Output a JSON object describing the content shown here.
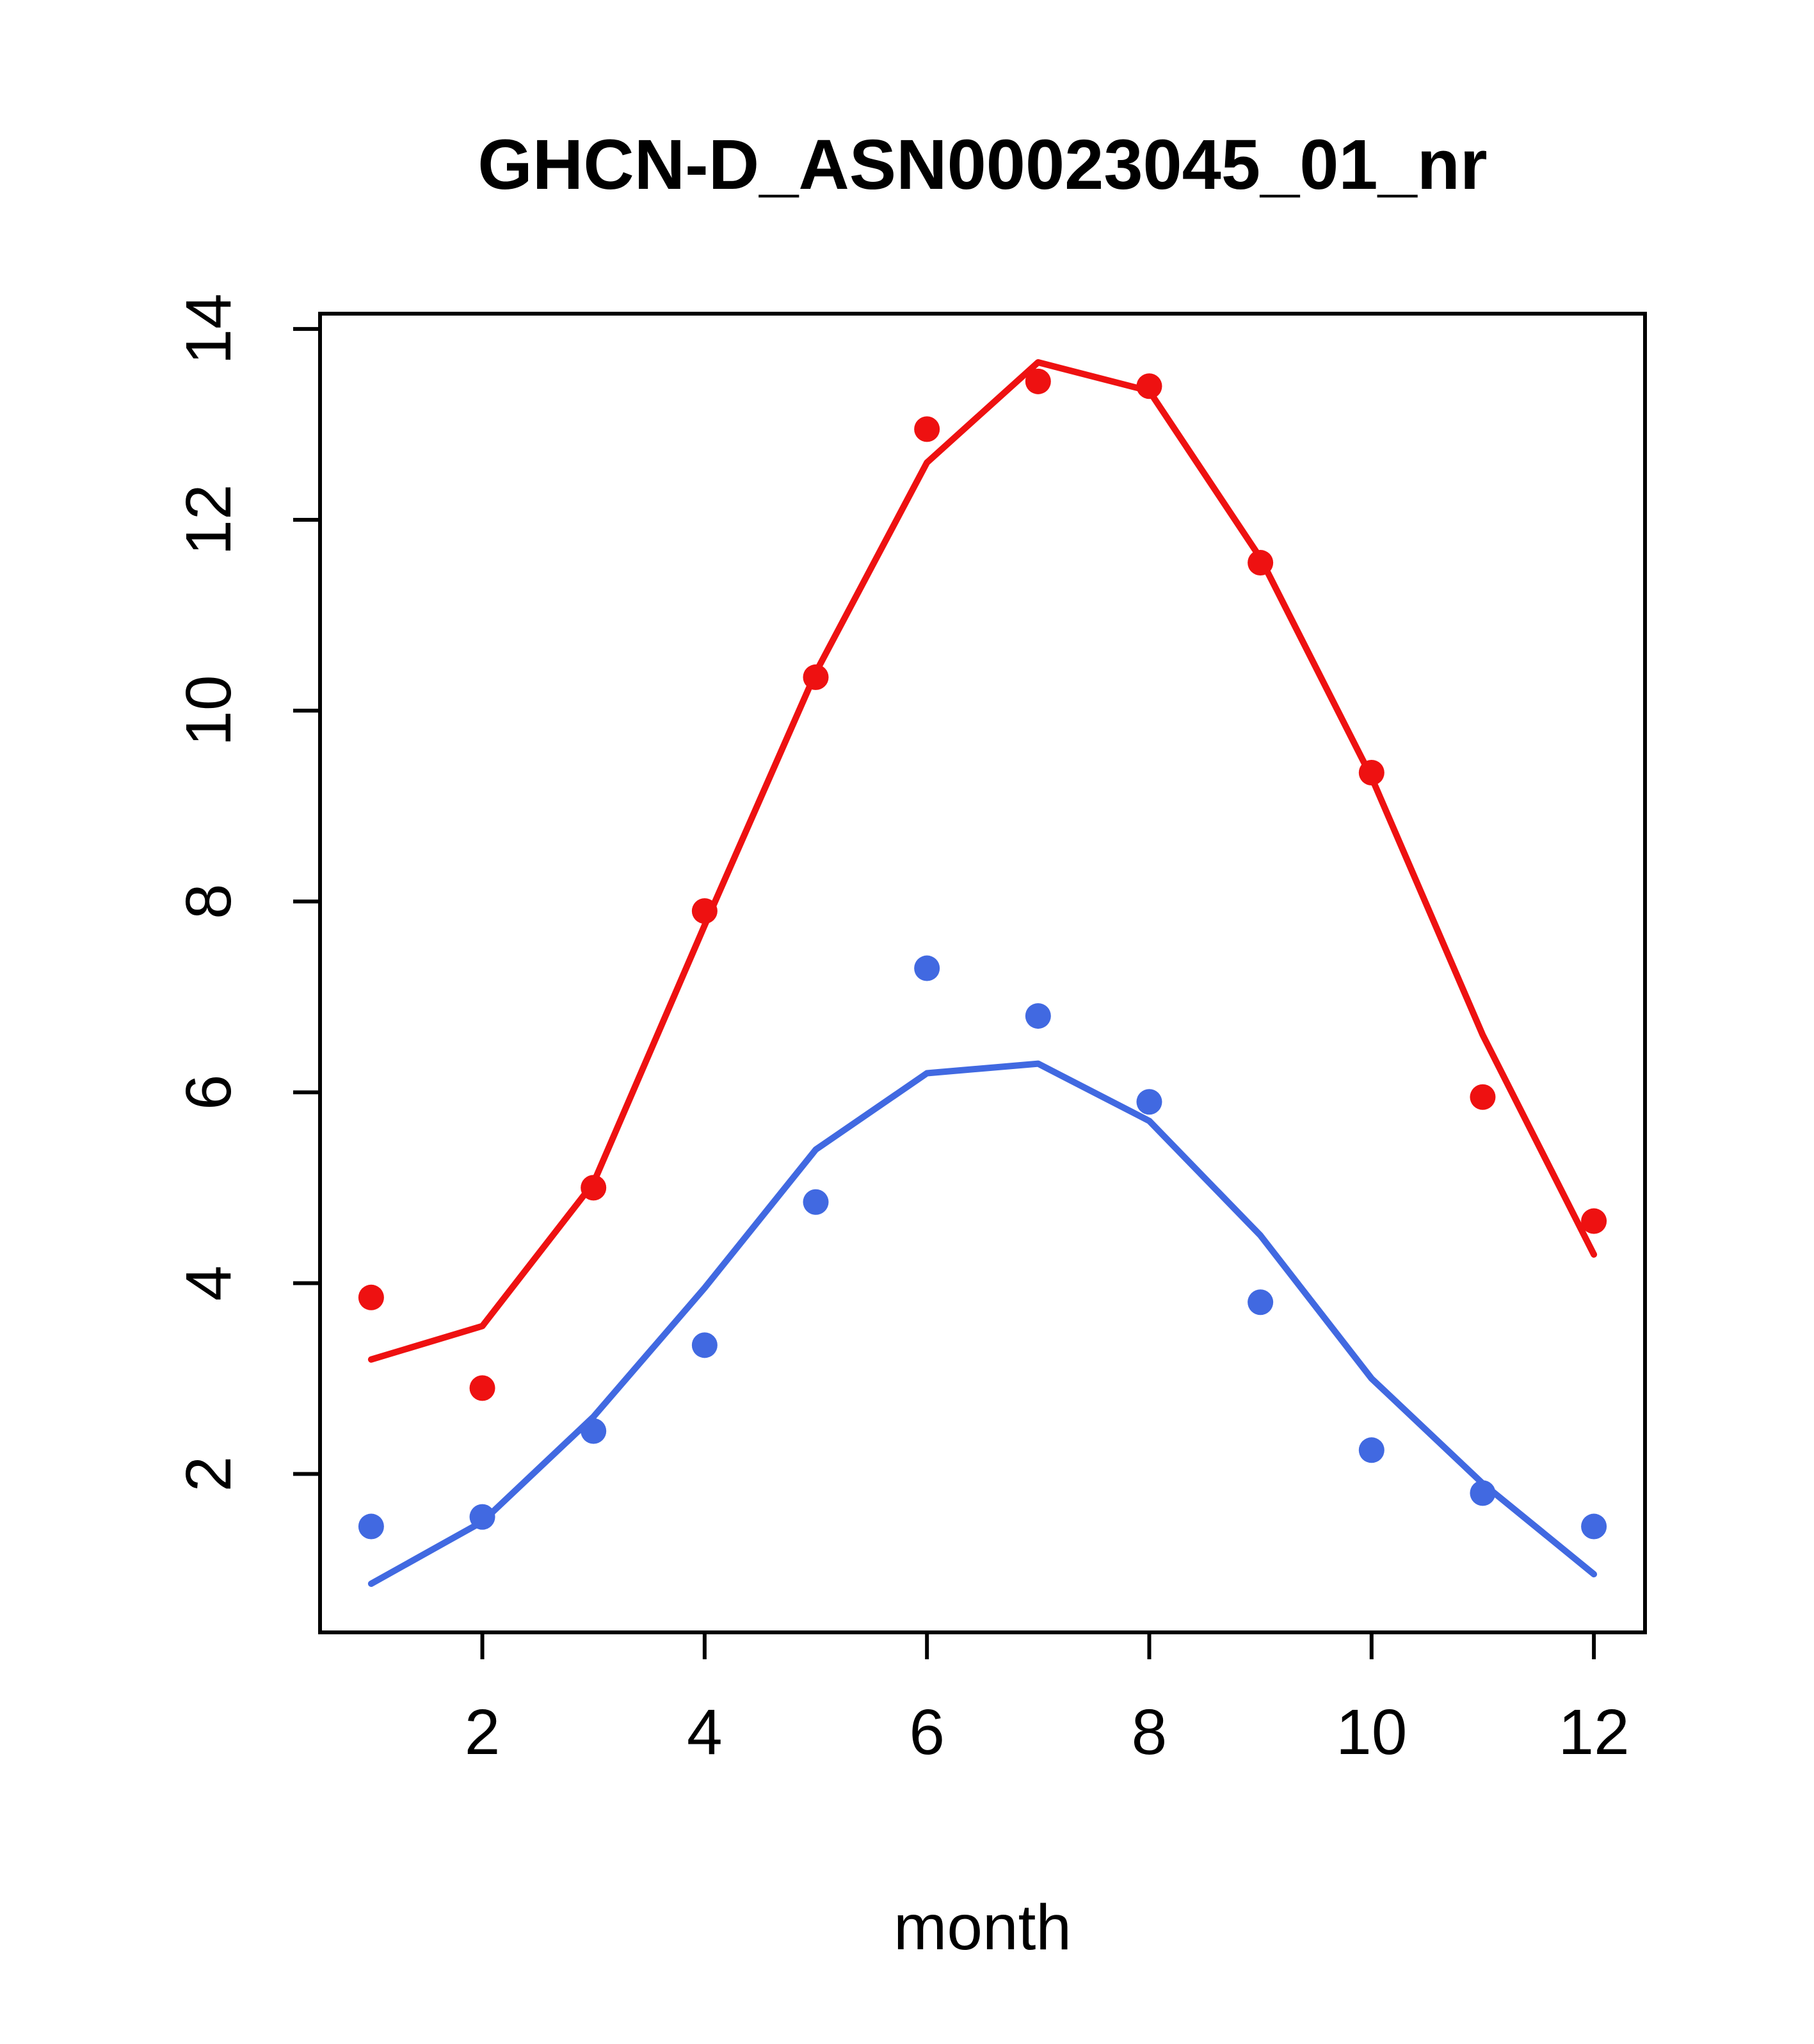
{
  "chart_data": {
    "type": "line",
    "title": "GHCN-D_ASN00023045_01_nr",
    "xlabel": "month",
    "ylabel": "",
    "x": [
      1,
      2,
      3,
      4,
      5,
      6,
      7,
      8,
      9,
      10,
      11,
      12
    ],
    "xlim": [
      0.54,
      12.46
    ],
    "ylim": [
      0.34,
      14.16
    ],
    "xticks": [
      2,
      4,
      6,
      8,
      10,
      12
    ],
    "yticks": [
      2,
      4,
      6,
      8,
      10,
      12,
      14
    ],
    "grid": false,
    "legend": "none",
    "colors": {
      "red_series": "#ee1111",
      "blue_series": "#4169e1",
      "axis": "#000000"
    },
    "series": [
      {
        "name": "red-fit-line",
        "type": "line",
        "color": "#ee1111",
        "values": [
          3.2,
          3.55,
          5.05,
          7.75,
          10.4,
          12.6,
          13.65,
          13.35,
          11.6,
          9.3,
          6.6,
          4.3
        ]
      },
      {
        "name": "blue-fit-line",
        "type": "line",
        "color": "#4169e1",
        "values": [
          0.85,
          1.5,
          2.6,
          3.95,
          5.4,
          6.2,
          6.3,
          5.7,
          4.5,
          3.0,
          1.9,
          0.95
        ]
      },
      {
        "name": "red-observed-points",
        "type": "scatter",
        "color": "#ee1111",
        "values": [
          3.85,
          2.9,
          5.0,
          7.9,
          10.35,
          12.95,
          13.45,
          13.4,
          11.55,
          9.35,
          5.95,
          4.65
        ]
      },
      {
        "name": "blue-observed-points",
        "type": "scatter",
        "color": "#4169e1",
        "values": [
          1.45,
          1.55,
          2.45,
          3.35,
          4.85,
          7.3,
          6.8,
          5.9,
          3.8,
          2.25,
          1.8,
          1.45
        ]
      }
    ]
  }
}
